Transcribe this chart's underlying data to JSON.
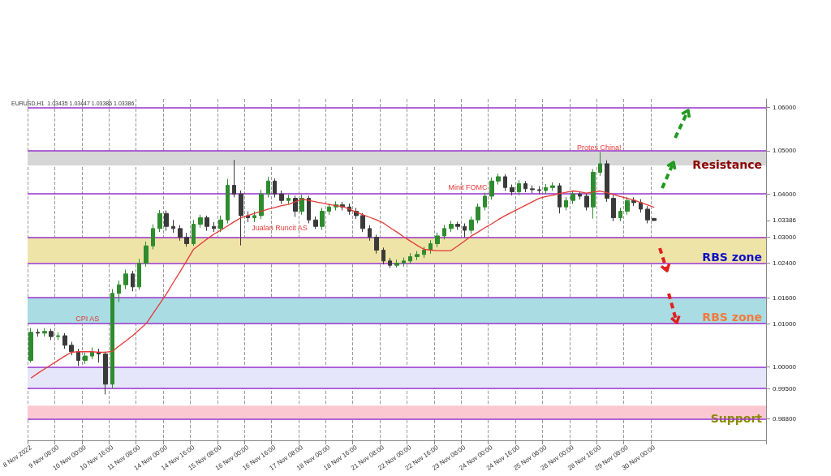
{
  "chart_data": {
    "type": "candlestick",
    "categories": [
      "8 Nov 2022",
      null,
      null,
      null,
      "9 Nov 08:00",
      null,
      null,
      null,
      "10 Nov 00:00",
      null,
      null,
      null,
      "10 Nov 16:00",
      null,
      null,
      null,
      "11 Nov 08:00",
      null,
      null,
      null,
      "14 Nov 00:00",
      null,
      null,
      null,
      "14 Nov 16:00",
      null,
      null,
      null,
      "15 Nov 08:00",
      null,
      null,
      null,
      "16 Nov 00:00",
      null,
      null,
      null,
      "16 Nov 16:00",
      null,
      null,
      null,
      "17 Nov 08:00",
      null,
      null,
      null,
      "18 Nov 00:00",
      null,
      null,
      null,
      "18 Nov 16:00",
      null,
      null,
      null,
      "21 Nov 08:00",
      null,
      null,
      null,
      "22 Nov 00:00",
      null,
      null,
      null,
      "22 Nov 16:00",
      null,
      null,
      null,
      "23 Nov 08:00",
      null,
      null,
      null,
      "24 Nov 00:00",
      null,
      null,
      null,
      "24 Nov 16:00",
      null,
      null,
      null,
      "25 Nov 08:00",
      null,
      null,
      null,
      "28 Nov 00:00",
      null,
      null,
      null,
      "28 Nov 16:00",
      null,
      null,
      null,
      "29 Nov 08:00",
      null,
      null,
      null,
      "30 Nov 00:00"
    ],
    "ohlc": [
      [
        1.0015,
        1.009,
        1.001,
        1.008
      ],
      [
        1.008,
        1.0088,
        1.007,
        1.0078
      ],
      [
        1.0078,
        1.009,
        1.007,
        1.0082
      ],
      [
        1.0082,
        1.0088,
        1.0062,
        1.007
      ],
      [
        1.007,
        1.008,
        1.0062,
        1.0072
      ],
      [
        1.0072,
        1.0078,
        1.0042,
        1.005
      ],
      [
        1.005,
        1.0058,
        1.0027,
        1.0035
      ],
      [
        1.0035,
        1.0042,
        1.0002,
        1.0015
      ],
      [
        1.0015,
        1.0033,
        1.0007,
        1.0025
      ],
      [
        1.0025,
        1.0045,
        1.0018,
        1.0034
      ],
      [
        1.0034,
        1.0042,
        1.001,
        1.003
      ],
      [
        1.003,
        1.0035,
        0.9936,
        0.996
      ],
      [
        0.996,
        1.018,
        0.995,
        1.017
      ],
      [
        1.017,
        1.02,
        1.015,
        1.019
      ],
      [
        1.019,
        1.0225,
        1.018,
        1.0215
      ],
      [
        1.0215,
        1.0222,
        1.0175,
        1.0185
      ],
      [
        1.0185,
        1.025,
        1.0178,
        1.024
      ],
      [
        1.024,
        1.029,
        1.0232,
        1.028
      ],
      [
        1.028,
        1.033,
        1.0272,
        1.032
      ],
      [
        1.032,
        1.0363,
        1.0312,
        1.0355
      ],
      [
        1.0355,
        1.0362,
        1.0315,
        1.0325
      ],
      [
        1.0325,
        1.034,
        1.031,
        1.032
      ],
      [
        1.032,
        1.0328,
        1.0292,
        1.03
      ],
      [
        1.03,
        1.031,
        1.0278,
        1.0285
      ],
      [
        1.0285,
        1.034,
        1.028,
        1.033
      ],
      [
        1.033,
        1.0352,
        1.0322,
        1.0345
      ],
      [
        1.0345,
        1.035,
        1.0315,
        1.0325
      ],
      [
        1.0325,
        1.0335,
        1.0312,
        1.032
      ],
      [
        1.032,
        1.035,
        1.0312,
        1.034
      ],
      [
        1.034,
        1.0435,
        1.0332,
        1.042
      ],
      [
        1.042,
        1.0479,
        1.0392,
        1.04
      ],
      [
        1.04,
        1.0408,
        1.0281,
        1.035
      ],
      [
        1.035,
        1.036,
        1.0335,
        1.0345
      ],
      [
        1.0345,
        1.036,
        1.0335,
        1.035
      ],
      [
        1.035,
        1.041,
        1.0342,
        1.04
      ],
      [
        1.04,
        1.044,
        1.0392,
        1.043
      ],
      [
        1.043,
        1.0436,
        1.0392,
        1.04
      ],
      [
        1.04,
        1.0408,
        1.0377,
        1.0385
      ],
      [
        1.0385,
        1.0398,
        1.0377,
        1.039
      ],
      [
        1.039,
        1.0396,
        1.0347,
        1.036
      ],
      [
        1.036,
        1.0398,
        1.0352,
        1.039
      ],
      [
        1.039,
        1.0396,
        1.0332,
        1.034
      ],
      [
        1.034,
        1.0348,
        1.0319,
        1.0325
      ],
      [
        1.0325,
        1.0368,
        1.0317,
        1.036
      ],
      [
        1.036,
        1.0378,
        1.0352,
        1.037
      ],
      [
        1.037,
        1.0383,
        1.0362,
        1.0375
      ],
      [
        1.0375,
        1.0382,
        1.0362,
        1.037
      ],
      [
        1.037,
        1.0378,
        1.0352,
        1.036
      ],
      [
        1.036,
        1.0368,
        1.0342,
        1.035
      ],
      [
        1.035,
        1.0356,
        1.0312,
        1.032
      ],
      [
        1.032,
        1.0328,
        1.0292,
        1.03
      ],
      [
        1.03,
        1.0306,
        1.0262,
        1.027
      ],
      [
        1.027,
        1.0276,
        1.0237,
        1.0245
      ],
      [
        1.0245,
        1.0252,
        1.0229,
        1.0235
      ],
      [
        1.0235,
        1.0248,
        1.023,
        1.024
      ],
      [
        1.024,
        1.0253,
        1.0232,
        1.0245
      ],
      [
        1.0245,
        1.0263,
        1.0238,
        1.0255
      ],
      [
        1.0255,
        1.0268,
        1.0247,
        1.026
      ],
      [
        1.026,
        1.0278,
        1.0252,
        1.027
      ],
      [
        1.027,
        1.0293,
        1.0262,
        1.0285
      ],
      [
        1.0285,
        1.0311,
        1.0277,
        1.0303
      ],
      [
        1.0303,
        1.0328,
        1.0295,
        1.032
      ],
      [
        1.032,
        1.0338,
        1.0312,
        1.033
      ],
      [
        1.033,
        1.0336,
        1.0317,
        1.0325
      ],
      [
        1.0325,
        1.0332,
        1.03,
        1.0316
      ],
      [
        1.0316,
        1.0348,
        1.0308,
        1.034
      ],
      [
        1.034,
        1.0378,
        1.0332,
        1.037
      ],
      [
        1.037,
        1.0403,
        1.0362,
        1.0395
      ],
      [
        1.0395,
        1.0438,
        1.0387,
        1.043
      ],
      [
        1.043,
        1.0447,
        1.0422,
        1.044
      ],
      [
        1.044,
        1.0446,
        1.0407,
        1.0415
      ],
      [
        1.0415,
        1.0422,
        1.0397,
        1.0405
      ],
      [
        1.0405,
        1.0432,
        1.0397,
        1.0424
      ],
      [
        1.0424,
        1.043,
        1.0404,
        1.0412
      ],
      [
        1.0412,
        1.042,
        1.0402,
        1.041
      ],
      [
        1.041,
        1.0418,
        1.04,
        1.0408
      ],
      [
        1.0408,
        1.0423,
        1.04,
        1.0415
      ],
      [
        1.0415,
        1.0427,
        1.0407,
        1.0419
      ],
      [
        1.0419,
        1.0425,
        1.0355,
        1.037
      ],
      [
        1.037,
        1.0393,
        1.0362,
        1.0385
      ],
      [
        1.0385,
        1.0408,
        1.0377,
        1.04
      ],
      [
        1.04,
        1.0406,
        1.0387,
        1.0395
      ],
      [
        1.0395,
        1.0402,
        1.0362,
        1.037
      ],
      [
        1.037,
        1.0458,
        1.0343,
        1.045
      ],
      [
        1.045,
        1.0497,
        1.0442,
        1.047
      ],
      [
        1.047,
        1.0478,
        1.0382,
        1.039
      ],
      [
        1.039,
        1.0398,
        1.0337,
        1.0345
      ],
      [
        1.0345,
        1.0368,
        1.0337,
        1.036
      ],
      [
        1.036,
        1.0393,
        1.0352,
        1.0385
      ],
      [
        1.0385,
        1.0392,
        1.0372,
        1.038
      ],
      [
        1.038,
        1.0388,
        1.0357,
        1.0365
      ],
      [
        1.0365,
        1.0372,
        1.0332,
        1.034
      ],
      [
        1.03435,
        1.03447,
        1.03386,
        1.03386
      ]
    ],
    "series": [
      {
        "type": "line",
        "color": "#e53935",
        "values": [
          0.9974,
          0.9985,
          0.9995,
          1.0005,
          1.0015,
          1.0025,
          1.0034,
          1.0035,
          1.0035,
          1.0035,
          1.0034,
          1.0034,
          1.0036,
          1.0048,
          1.006,
          1.0072,
          1.0086,
          1.01,
          1.0123,
          1.0146,
          1.0169,
          1.0195,
          1.022,
          1.0246,
          1.0272,
          1.0284,
          1.0296,
          1.0307,
          1.0316,
          1.0326,
          1.0336,
          1.0345,
          1.035,
          1.0355,
          1.036,
          1.0365,
          1.0369,
          1.0373,
          1.0376,
          1.0382,
          1.0388,
          1.0385,
          1.0382,
          1.0379,
          1.0376,
          1.0373,
          1.0371,
          1.0365,
          1.0358,
          1.0352,
          1.0346,
          1.034,
          1.0333,
          1.0322,
          1.0312,
          1.0301,
          1.0291,
          1.0281,
          1.0272,
          1.027,
          1.0269,
          1.0269,
          1.0269,
          1.028,
          1.0291,
          1.0303,
          1.0312,
          1.0322,
          1.0331,
          1.0341,
          1.035,
          1.0358,
          1.0366,
          1.0374,
          1.0382,
          1.039,
          1.0394,
          1.0397,
          1.0401,
          1.0404,
          1.0407,
          1.0405,
          1.0402,
          1.0405,
          1.0407,
          1.0403,
          1.0399,
          1.0394,
          1.039,
          1.0386,
          1.038,
          1.0375,
          1.0369
        ]
      }
    ],
    "ylim": [
      0.983,
      1.062
    ],
    "yticks": [
      {
        "value": 1.06,
        "label": "1.06000"
      },
      {
        "value": 1.05,
        "label": "1.05000"
      },
      {
        "value": 1.04,
        "label": "1.04000"
      },
      {
        "value": 1.03386,
        "label": "1.03386"
      },
      {
        "value": 1.03,
        "label": "1.03000"
      },
      {
        "value": 1.024,
        "label": "1.02400"
      },
      {
        "value": 1.016,
        "label": "1.01600"
      },
      {
        "value": 1.01,
        "label": "1.01000"
      },
      {
        "value": 1.0,
        "label": "1.00000"
      },
      {
        "value": 0.995,
        "label": "0.99500"
      },
      {
        "value": 0.988,
        "label": "0.98800"
      }
    ],
    "ref_lines": [
      {
        "axis": "y",
        "value": 1.06,
        "color": "#9933cc"
      },
      {
        "axis": "y",
        "value": 1.05,
        "color": "#9933cc"
      },
      {
        "axis": "y",
        "value": 1.04,
        "color": "#9933cc"
      },
      {
        "axis": "y",
        "value": 1.03,
        "color": "#9933cc"
      },
      {
        "axis": "y",
        "value": 1.024,
        "color": "#9933cc"
      },
      {
        "axis": "y",
        "value": 1.016,
        "color": "#9933cc"
      },
      {
        "axis": "y",
        "value": 1.01,
        "color": "#9933cc"
      },
      {
        "axis": "y",
        "value": 1.0,
        "color": "#9933cc"
      },
      {
        "axis": "y",
        "value": 0.995,
        "color": "#9933cc"
      },
      {
        "axis": "y",
        "value": 0.988,
        "color": "#9933cc"
      }
    ],
    "bands": [
      {
        "axis": "y",
        "from": 1.0466,
        "to": 1.05,
        "label": "Resistance",
        "color": "#d6d6d6"
      },
      {
        "axis": "y",
        "from": 1.024,
        "to": 1.03,
        "label": "RBS zone",
        "color": "#efe4a8"
      },
      {
        "axis": "y",
        "from": 1.01,
        "to": 1.016,
        "label": "RBS zone",
        "color": "#a9dde3"
      },
      {
        "axis": "y",
        "from": 0.995,
        "to": 1.0,
        "color": "#e6e6fa"
      },
      {
        "axis": "y",
        "from": 0.988,
        "to": 0.991,
        "label": "Support",
        "color": "#fbc8d2"
      }
    ],
    "annotations": [
      "EURUSD,H1  1.03435 1.03447 1.03386 1.03386",
      "CPI AS",
      "Jualan Runcit AS",
      "Minit FOMC",
      "Protes China!"
    ],
    "grid": "x",
    "marker": "none"
  }
}
